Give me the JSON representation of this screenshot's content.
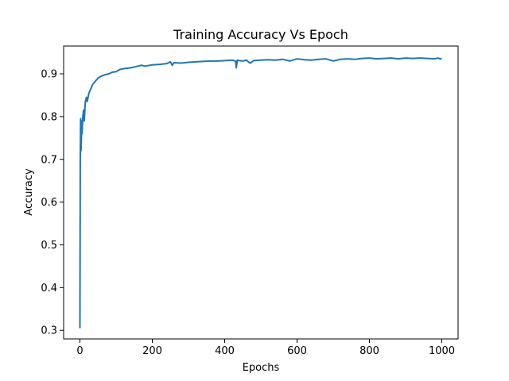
{
  "chart_data": {
    "type": "line",
    "title": "Training Accuracy Vs Epoch",
    "xlabel": "Epochs",
    "ylabel": "Accuracy",
    "xlim": [
      -45,
      1045
    ],
    "ylim": [
      0.28,
      0.965
    ],
    "xticks": [
      0,
      200,
      400,
      600,
      800,
      1000
    ],
    "xtick_labels": [
      "0",
      "200",
      "400",
      "600",
      "800",
      "1000"
    ],
    "yticks": [
      0.3,
      0.4,
      0.5,
      0.6,
      0.7,
      0.8,
      0.9
    ],
    "ytick_labels": [
      "0.3",
      "0.4",
      "0.5",
      "0.6",
      "0.7",
      "0.8",
      "0.9"
    ],
    "grid": false,
    "line_color": "#1f77b4",
    "series": [
      {
        "x": [
          0,
          1,
          2,
          3,
          4,
          5,
          6,
          8,
          10,
          12,
          15,
          18,
          20,
          25,
          30,
          35,
          40,
          45,
          50,
          60,
          70,
          80,
          90,
          100,
          110,
          120,
          140,
          160,
          170,
          180,
          200,
          220,
          240,
          250,
          255,
          260,
          280,
          300,
          320,
          340,
          360,
          380,
          400,
          420,
          430,
          432,
          435,
          440,
          450,
          460,
          470,
          480,
          500,
          520,
          540,
          560,
          580,
          600,
          620,
          640,
          660,
          680,
          700,
          720,
          740,
          760,
          780,
          800,
          820,
          840,
          860,
          880,
          900,
          920,
          940,
          960,
          980,
          990,
          995,
          1000
        ],
        "y": [
          0.305,
          0.7,
          0.795,
          0.72,
          0.745,
          0.79,
          0.76,
          0.8,
          0.815,
          0.79,
          0.835,
          0.845,
          0.835,
          0.855,
          0.865,
          0.875,
          0.88,
          0.885,
          0.89,
          0.895,
          0.898,
          0.9,
          0.904,
          0.905,
          0.91,
          0.912,
          0.914,
          0.918,
          0.92,
          0.918,
          0.921,
          0.922,
          0.924,
          0.928,
          0.92,
          0.926,
          0.925,
          0.927,
          0.928,
          0.929,
          0.93,
          0.93,
          0.931,
          0.932,
          0.93,
          0.914,
          0.932,
          0.931,
          0.93,
          0.932,
          0.925,
          0.931,
          0.932,
          0.933,
          0.932,
          0.934,
          0.93,
          0.935,
          0.933,
          0.932,
          0.934,
          0.935,
          0.93,
          0.934,
          0.935,
          0.934,
          0.936,
          0.937,
          0.935,
          0.936,
          0.937,
          0.935,
          0.937,
          0.936,
          0.937,
          0.936,
          0.935,
          0.937,
          0.935,
          0.936
        ]
      }
    ]
  }
}
